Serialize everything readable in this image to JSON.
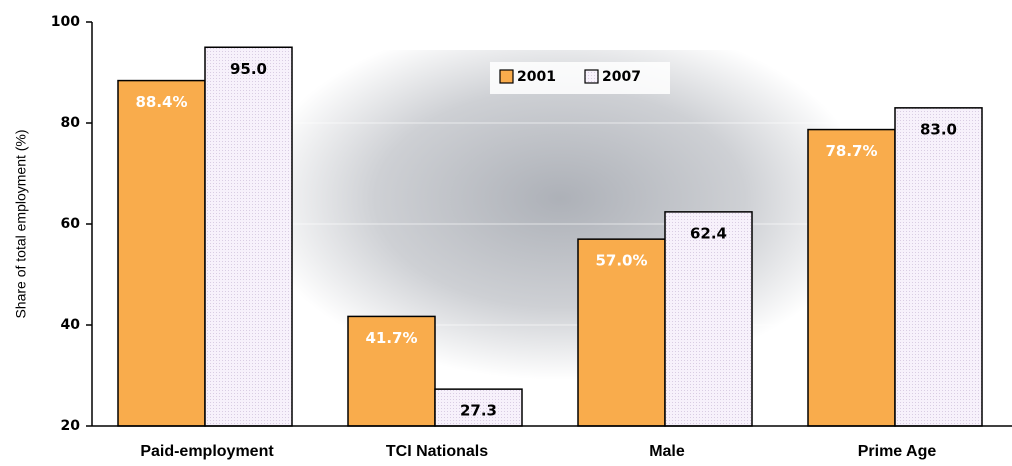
{
  "chart_data": {
    "type": "bar",
    "y_label": "Share of total employment (%)",
    "categories": [
      "Paid-employment",
      "TCI Nationals",
      "Male",
      "Prime Age"
    ],
    "series": [
      {
        "name": "2001",
        "color": "#f9ac4c",
        "values": [
          88.4,
          41.7,
          57.0,
          78.7
        ],
        "value_labels": [
          "88.4%",
          "41.7%",
          "57.0%",
          "78.7%"
        ]
      },
      {
        "name": "2007",
        "color": "#f7f1fb",
        "values": [
          95.0,
          27.3,
          62.4,
          83.0
        ],
        "value_labels": [
          "95.0",
          "27.3",
          "62.4",
          "83.0"
        ]
      }
    ],
    "ylim": [
      20,
      100
    ],
    "yticks": [
      20,
      40,
      60,
      80,
      100
    ],
    "grid": true,
    "legend": "top"
  }
}
